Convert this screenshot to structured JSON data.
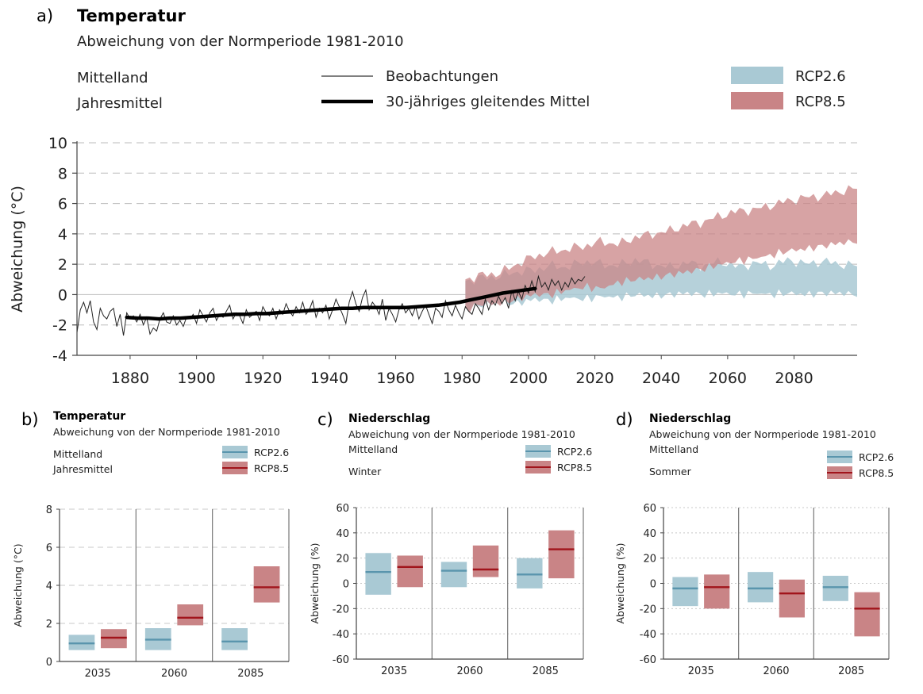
{
  "colors": {
    "rcp26": "#a9c9d4",
    "rcp26_line": "#5a95ad",
    "rcp85": "#c98486",
    "rcp85_line": "#a1141b",
    "axis": "#444444",
    "grid": "#bbbbbb",
    "obs": "#222222",
    "mean": "#000000"
  },
  "chart_data": [
    {
      "panel_label": "a)",
      "type": "area",
      "title": "Temperatur",
      "subtitle": "Abweichung von der Normperiode 1981-2010",
      "region": "Mittelland",
      "season": "Jahresmittel",
      "legend": {
        "obs": "Beobachtungen",
        "mean": "30-jähriges gleitendes Mittel",
        "rcp26": "RCP2.6",
        "rcp85": "RCP8.5"
      },
      "ylabel": "Abweichung (°C)",
      "xlabel": "",
      "xlim": [
        1864,
        2099
      ],
      "ylim": [
        -4,
        10
      ],
      "yticks": [
        -4,
        -2,
        0,
        2,
        4,
        6,
        8,
        10
      ],
      "ytick_labels": [
        "-4",
        "-2",
        "0",
        "2",
        "4",
        "6",
        "8",
        "10"
      ],
      "xticks": [
        1880,
        1900,
        1920,
        1940,
        1960,
        1980,
        2000,
        2020,
        2040,
        2060,
        2080
      ],
      "xtick_labels": [
        "1880",
        "1900",
        "1920",
        "1940",
        "1960",
        "1980",
        "2000",
        "2020",
        "2040",
        "2060",
        "2080"
      ],
      "observations_x": [
        1864,
        2017
      ],
      "observations_y": [
        -2.5,
        -1,
        -0.5,
        -1.2,
        -0.4,
        -1.8,
        -2.3,
        -0.9,
        -1.4,
        -1.6,
        -1.1,
        -0.9,
        -2.1,
        -1.3,
        -2.7,
        -1.2,
        -1.6,
        -1.4,
        -1.8,
        -1.3,
        -2.0,
        -1.5,
        -2.6,
        -2.2,
        -2.4,
        -1.6,
        -1.2,
        -1.8,
        -1.9,
        -1.4,
        -2.0,
        -1.7,
        -2.1,
        -1.5,
        -1.6,
        -1.3,
        -1.9,
        -1.0,
        -1.4,
        -1.8,
        -1.2,
        -0.9,
        -1.7,
        -1.3,
        -1.5,
        -1.1,
        -0.7,
        -1.6,
        -1.2,
        -1.4,
        -1.9,
        -1.0,
        -1.5,
        -1.3,
        -1.1,
        -1.7,
        -0.8,
        -1.2,
        -1.4,
        -0.9,
        -1.6,
        -1.0,
        -1.3,
        -0.6,
        -1.1,
        -1.4,
        -0.8,
        -1.2,
        -0.5,
        -1.3,
        -1.0,
        -0.4,
        -1.5,
        -0.9,
        -1.2,
        -0.7,
        -1.6,
        -1.0,
        -0.3,
        -0.8,
        -1.3,
        -1.9,
        -0.5,
        0.2,
        -0.6,
        -1.1,
        -0.2,
        0.3,
        -1.0,
        -0.5,
        -0.8,
        -1.3,
        -0.3,
        -1.7,
        -0.9,
        -1.3,
        -1.8,
        -1.0,
        -0.6,
        -1.2,
        -0.9,
        -1.4,
        -0.8,
        -1.6,
        -1.1,
        -0.7,
        -1.3,
        -1.9,
        -0.9,
        -1.1,
        -1.5,
        -0.4,
        -1.0,
        -1.4,
        -0.7,
        -1.2,
        -1.6,
        -0.8,
        -1.1,
        -1.3,
        -0.6,
        -0.9,
        -1.3,
        -0.3,
        -1.0,
        -0.4,
        -0.7,
        -0.1,
        -0.6,
        -0.2,
        -0.9,
        0.3,
        -0.4,
        0.2,
        -0.3,
        0.6,
        0.1,
        0.9,
        0.2,
        1.2,
        0.5,
        0.8,
        0.3,
        1.0,
        0.6,
        0.9,
        0.3,
        0.8,
        0.5,
        1.1,
        0.7,
        1.0,
        0.9,
        1.2
      ],
      "moving_mean_x": [
        1879,
        2002
      ],
      "moving_mean_y": [
        -1.5,
        -1.55,
        -1.55,
        -1.6,
        -1.55,
        -1.55,
        -1.5,
        -1.45,
        -1.4,
        -1.35,
        -1.3,
        -1.3,
        -1.25,
        -1.25,
        -1.2,
        -1.15,
        -1.1,
        -1.05,
        -1.0,
        -0.95,
        -0.9,
        -0.9,
        -0.85,
        -0.85,
        -0.85,
        -0.85,
        -0.85,
        -0.8,
        -0.75,
        -0.7,
        -0.6,
        -0.5,
        -0.35,
        -0.2,
        -0.05,
        0.1,
        0.2,
        0.3,
        0.4
      ],
      "projection_x_start": 1981,
      "projection_x_end": 2099,
      "rcp26_low": [
        -0.9,
        -0.7,
        -0.5,
        -0.6,
        -0.3,
        -0.4,
        -0.2,
        -0.3,
        -0.1,
        -0.2,
        0.0,
        -0.1,
        0.0,
        0.1,
        0.0,
        0.1,
        0.0,
        0.1,
        0.0,
        0.1,
        0.0,
        0.1,
        0.1,
        0.0
      ],
      "rcp26_high": [
        0.9,
        1.1,
        1.2,
        1.5,
        1.6,
        1.9,
        1.8,
        2.2,
        2.0,
        1.9,
        2.3,
        2.0,
        1.8,
        2.1,
        1.9,
        2.2,
        1.8,
        2.1,
        1.9,
        2.3,
        2.0,
        2.2,
        2.0,
        1.9
      ],
      "rcp85_low": [
        -1.0,
        -0.6,
        -0.6,
        -0.3,
        0.0,
        0.0,
        0.3,
        0.5,
        0.4,
        0.8,
        1.0,
        1.1,
        1.3,
        1.5,
        1.7,
        2.0,
        2.2,
        2.4,
        2.6,
        2.9,
        3.0,
        3.2,
        3.4,
        3.5
      ],
      "rcp85_high": [
        1.0,
        1.3,
        1.4,
        2.0,
        2.5,
        2.8,
        3.0,
        3.2,
        3.5,
        3.3,
        3.8,
        4.0,
        4.2,
        4.6,
        4.8,
        5.2,
        5.5,
        5.6,
        5.9,
        6.2,
        6.4,
        6.5,
        6.8,
        7.0
      ]
    },
    {
      "panel_label": "b)",
      "type": "bar",
      "title": "Temperatur",
      "subtitle": "Abweichung von der Normperiode 1981-2010",
      "region": "Mittelland",
      "season": "Jahresmittel",
      "legend": {
        "rcp26": "RCP2.6",
        "rcp85": "RCP8.5"
      },
      "ylabel": "Abweichung (°C)",
      "ylim": [
        0,
        8
      ],
      "yticks": [
        0,
        2,
        4,
        6,
        8
      ],
      "ytick_labels": [
        "0",
        "2",
        "4",
        "6",
        "8"
      ],
      "categories": [
        "2035",
        "2060",
        "2085"
      ],
      "series": [
        {
          "name": "RCP2.6",
          "low": [
            0.6,
            0.6,
            0.6
          ],
          "median": [
            0.95,
            1.15,
            1.05
          ],
          "high": [
            1.4,
            1.75,
            1.75
          ]
        },
        {
          "name": "RCP8.5",
          "low": [
            0.7,
            1.9,
            3.1
          ],
          "median": [
            1.25,
            2.3,
            3.9
          ],
          "high": [
            1.7,
            3.0,
            5.0
          ]
        }
      ]
    },
    {
      "panel_label": "c)",
      "type": "bar",
      "title": "Niederschlag",
      "subtitle": "Abweichung von der Normperiode 1981-2010",
      "region": "Mittelland",
      "season": "Winter",
      "legend": {
        "rcp26": "RCP2.6",
        "rcp85": "RCP8.5"
      },
      "ylabel": "Abweichung (%)",
      "ylim": [
        -60,
        60
      ],
      "yticks": [
        -60,
        -40,
        -20,
        0,
        20,
        40,
        60
      ],
      "ytick_labels": [
        "-60",
        "-40",
        "-20",
        "0",
        "20",
        "40",
        "60"
      ],
      "categories": [
        "2035",
        "2060",
        "2085"
      ],
      "series": [
        {
          "name": "RCP2.6",
          "low": [
            -9,
            -3,
            -4
          ],
          "median": [
            9,
            10,
            7
          ],
          "high": [
            24,
            17,
            20
          ]
        },
        {
          "name": "RCP8.5",
          "low": [
            -3,
            5,
            4
          ],
          "median": [
            13,
            11,
            27
          ],
          "high": [
            22,
            30,
            42
          ]
        }
      ]
    },
    {
      "panel_label": "d)",
      "type": "bar",
      "title": "Niederschlag",
      "subtitle": "Abweichung von der Normperiode 1981-2010",
      "region": "Mittelland",
      "season": "Sommer",
      "legend": {
        "rcp26": "RCP2.6",
        "rcp85": "RCP8.5"
      },
      "ylabel": "Abweichung (%)",
      "ylim": [
        -60,
        60
      ],
      "yticks": [
        -60,
        -40,
        -20,
        0,
        20,
        40,
        60
      ],
      "ytick_labels": [
        "-60",
        "-40",
        "-20",
        "0",
        "20",
        "40",
        "60"
      ],
      "categories": [
        "2035",
        "2060",
        "2085"
      ],
      "series": [
        {
          "name": "RCP2.6",
          "low": [
            -18,
            -15,
            -14
          ],
          "median": [
            -4,
            -4,
            -3
          ],
          "high": [
            5,
            9,
            6
          ]
        },
        {
          "name": "RCP8.5",
          "low": [
            -20,
            -27,
            -42
          ],
          "median": [
            -3,
            -8,
            -20
          ],
          "high": [
            7,
            3,
            -7
          ]
        }
      ]
    }
  ]
}
